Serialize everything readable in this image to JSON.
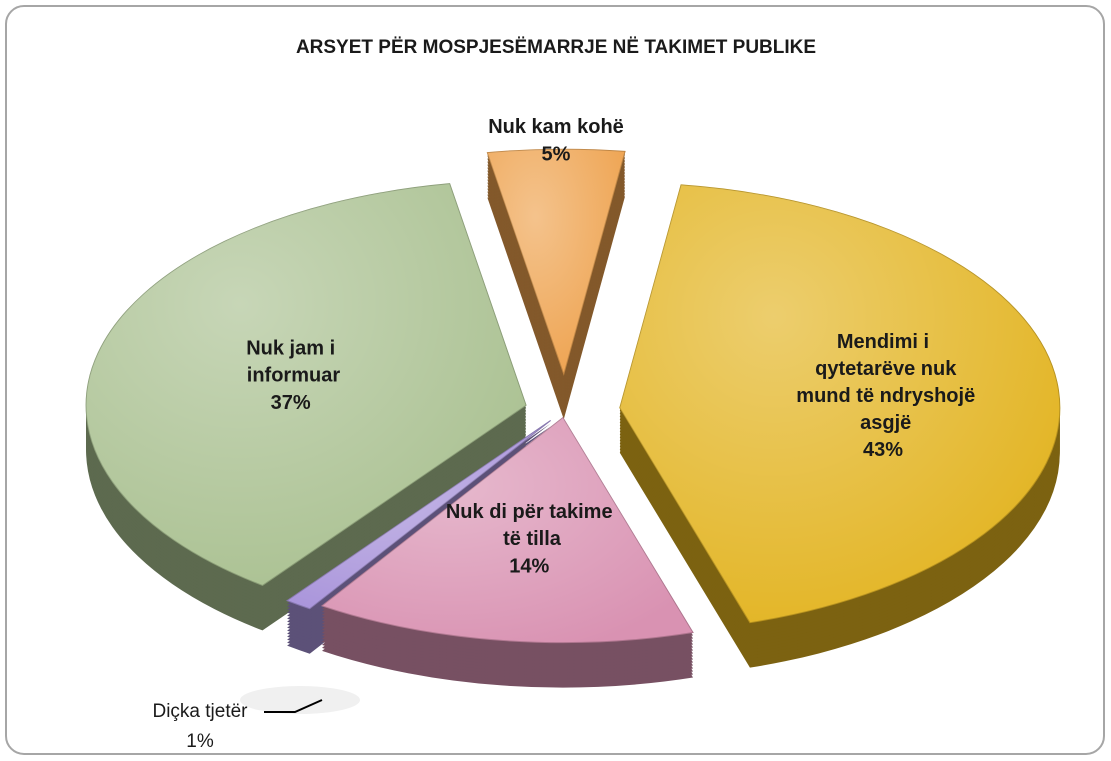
{
  "chart_data": {
    "type": "pie3d",
    "title": "ARSYET PËR MOSPJESËMARRJE NË TAKIMET PUBLIKE",
    "categories": [
      "Nuk kam kohë",
      "Mendimi i qytetarëve nuk mund të ndryshojë asgjë",
      "Nuk di për takime të tilla",
      "Diçka tjetër",
      "Nuk jam i informuar"
    ],
    "values": [
      5,
      43,
      14,
      1,
      37
    ],
    "value_labels": [
      "5%",
      "43%",
      "14%",
      "1%",
      "37%"
    ],
    "colors": [
      "#eea24e",
      "#e2b31f",
      "#d992b2",
      "#a893da",
      "#a9c090"
    ]
  }
}
